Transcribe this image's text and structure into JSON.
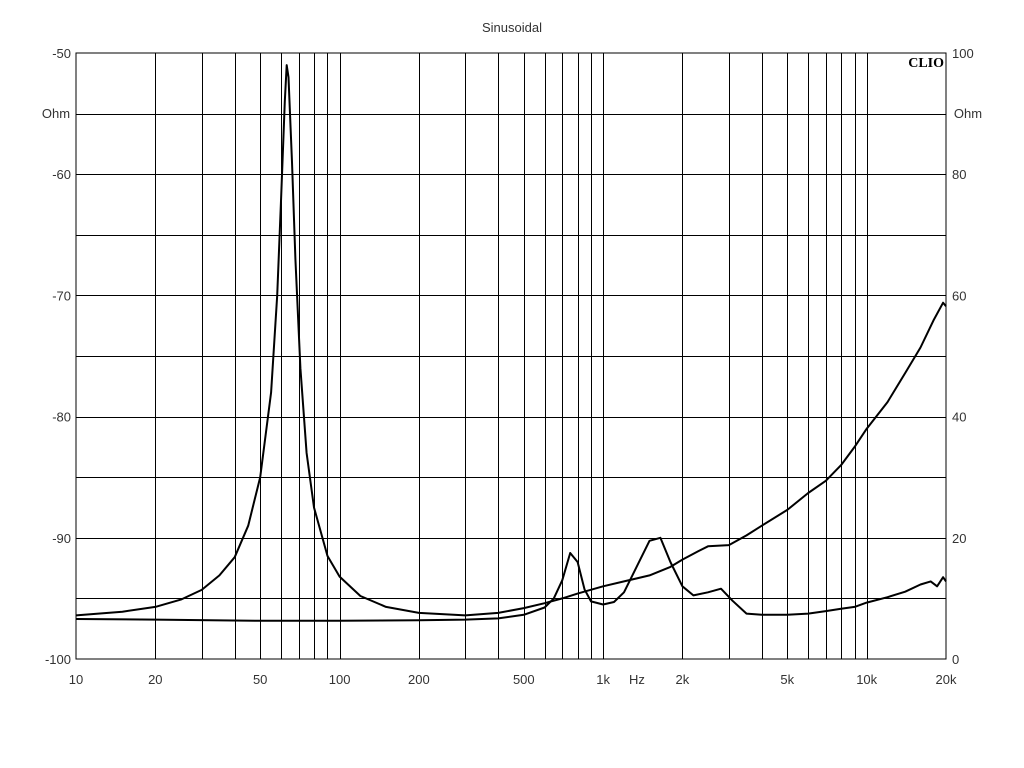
{
  "chart_data": {
    "type": "line",
    "title": "Sinusoidal",
    "brand": "CLIO",
    "xlabel": "Hz",
    "x_scale": "log",
    "xlim": [
      10,
      20000
    ],
    "x_ticks": [
      {
        "value": 10,
        "label": "10"
      },
      {
        "value": 20,
        "label": "20"
      },
      {
        "value": 50,
        "label": "50"
      },
      {
        "value": 100,
        "label": "100"
      },
      {
        "value": 200,
        "label": "200"
      },
      {
        "value": 500,
        "label": "500"
      },
      {
        "value": 1000,
        "label": "1k"
      },
      {
        "value": 2000,
        "label": "2k"
      },
      {
        "value": 5000,
        "label": "5k"
      },
      {
        "value": 10000,
        "label": "10k"
      },
      {
        "value": 20000,
        "label": "20k"
      }
    ],
    "y_left": {
      "unit": "Ohm",
      "ylim": [
        -100,
        -50
      ],
      "ticks": [
        {
          "value": -50,
          "label": "-50"
        },
        {
          "value": -60,
          "label": "-60"
        },
        {
          "value": -70,
          "label": "-70"
        },
        {
          "value": -80,
          "label": "-80"
        },
        {
          "value": -90,
          "label": "-90"
        },
        {
          "value": -100,
          "label": "-100"
        }
      ]
    },
    "y_right": {
      "unit": "Ohm",
      "ylim": [
        0,
        100
      ],
      "ticks": [
        {
          "value": 100,
          "label": "100"
        },
        {
          "value": 80,
          "label": "80"
        },
        {
          "value": 60,
          "label": "60"
        },
        {
          "value": 40,
          "label": "40"
        },
        {
          "value": 20,
          "label": "20"
        },
        {
          "value": 0,
          "label": "0"
        }
      ]
    },
    "grid": true,
    "series": [
      {
        "axis": "left",
        "points": [
          [
            10,
            -96.4
          ],
          [
            15,
            -96.1
          ],
          [
            20,
            -95.7
          ],
          [
            25,
            -95.1
          ],
          [
            30,
            -94.3
          ],
          [
            35,
            -93.1
          ],
          [
            40,
            -91.6
          ],
          [
            45,
            -89.0
          ],
          [
            50,
            -85.0
          ],
          [
            55,
            -78.0
          ],
          [
            58,
            -70.0
          ],
          [
            60,
            -62.0
          ],
          [
            62,
            -54.0
          ],
          [
            63,
            -51.0
          ],
          [
            64,
            -52.0
          ],
          [
            66,
            -59.0
          ],
          [
            68,
            -67.0
          ],
          [
            71,
            -76.0
          ],
          [
            75,
            -83.0
          ],
          [
            80,
            -87.5
          ],
          [
            90,
            -91.5
          ],
          [
            100,
            -93.2
          ],
          [
            120,
            -94.8
          ],
          [
            150,
            -95.7
          ],
          [
            200,
            -96.2
          ],
          [
            300,
            -96.4
          ],
          [
            400,
            -96.2
          ],
          [
            500,
            -95.8
          ],
          [
            600,
            -95.4
          ],
          [
            700,
            -95.0
          ],
          [
            800,
            -94.6
          ],
          [
            1000,
            -94.0
          ],
          [
            1200,
            -93.6
          ],
          [
            1500,
            -93.1
          ],
          [
            1800,
            -92.4
          ],
          [
            2000,
            -91.8
          ],
          [
            2300,
            -91.1
          ],
          [
            2500,
            -90.7
          ],
          [
            3000,
            -90.6
          ],
          [
            3500,
            -89.8
          ],
          [
            4000,
            -89.0
          ],
          [
            5000,
            -87.7
          ],
          [
            6000,
            -86.3
          ],
          [
            7000,
            -85.3
          ],
          [
            8000,
            -84.0
          ],
          [
            9000,
            -82.5
          ],
          [
            10000,
            -81.0
          ],
          [
            12000,
            -78.8
          ],
          [
            14000,
            -76.4
          ],
          [
            16000,
            -74.3
          ],
          [
            18000,
            -72.0
          ],
          [
            19500,
            -70.6
          ],
          [
            20000,
            -70.9
          ]
        ]
      },
      {
        "axis": "right",
        "points": [
          [
            10,
            6.6
          ],
          [
            20,
            6.5
          ],
          [
            50,
            6.3
          ],
          [
            100,
            6.3
          ],
          [
            200,
            6.4
          ],
          [
            300,
            6.5
          ],
          [
            400,
            6.7
          ],
          [
            500,
            7.3
          ],
          [
            600,
            8.5
          ],
          [
            650,
            10.0
          ],
          [
            700,
            13.0
          ],
          [
            750,
            17.5
          ],
          [
            800,
            16.0
          ],
          [
            850,
            11.5
          ],
          [
            900,
            9.5
          ],
          [
            1000,
            9.0
          ],
          [
            1100,
            9.4
          ],
          [
            1200,
            11.0
          ],
          [
            1350,
            15.5
          ],
          [
            1500,
            19.5
          ],
          [
            1650,
            20.0
          ],
          [
            1800,
            16.0
          ],
          [
            2000,
            12.0
          ],
          [
            2200,
            10.5
          ],
          [
            2500,
            11.0
          ],
          [
            2800,
            11.6
          ],
          [
            3100,
            9.6
          ],
          [
            3500,
            7.5
          ],
          [
            4000,
            7.3
          ],
          [
            5000,
            7.3
          ],
          [
            6000,
            7.5
          ],
          [
            7000,
            7.9
          ],
          [
            8000,
            8.3
          ],
          [
            9000,
            8.6
          ],
          [
            10000,
            9.3
          ],
          [
            12000,
            10.2
          ],
          [
            14000,
            11.1
          ],
          [
            16000,
            12.3
          ],
          [
            17500,
            12.8
          ],
          [
            18500,
            12.0
          ],
          [
            19500,
            13.5
          ],
          [
            20000,
            12.8
          ]
        ]
      }
    ]
  }
}
